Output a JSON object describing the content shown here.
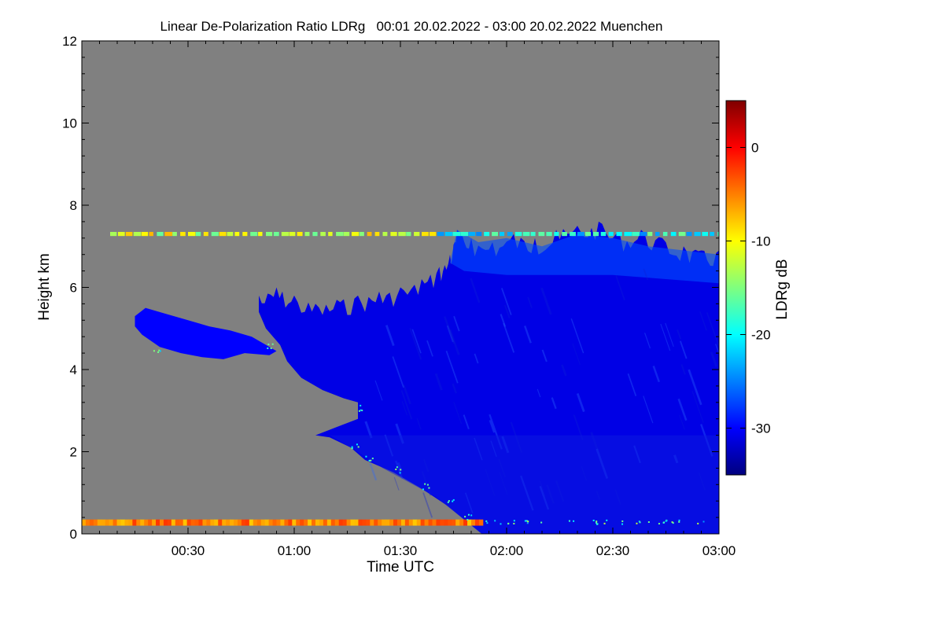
{
  "chart_data": {
    "type": "heatmap",
    "title": "Linear De-Polarization Ratio LDRg   00:01 20.02.2022 - 03:00 20.02.2022 Muenchen",
    "xlabel": "Time UTC",
    "ylabel": "Height km",
    "colorbar_label": "LDRg dB",
    "xlim": [
      "00:01",
      "03:00"
    ],
    "ylim": [
      0,
      12
    ],
    "x_ticks": [
      "00:30",
      "01:00",
      "01:30",
      "02:00",
      "02:30",
      "03:00"
    ],
    "y_ticks": [
      0,
      2,
      4,
      6,
      8,
      10,
      12
    ],
    "colorbar_range": [
      -35,
      5
    ],
    "colorbar_ticks": [
      0,
      -10,
      -20,
      -30
    ],
    "colormap": [
      "#00007f",
      "#0000ff",
      "#007fff",
      "#00ffff",
      "#7fff7f",
      "#ffff00",
      "#ff7f00",
      "#ff0000",
      "#7f0000"
    ],
    "no_signal_color": "#808080",
    "features": [
      {
        "name": "isolated cloud layer",
        "time_start": "00:15",
        "time_end": "00:55",
        "height_bottom_km": 4.3,
        "height_top_km": 5.5,
        "ldr_db": -30
      },
      {
        "name": "main precipitating cloud",
        "time_start": "00:50",
        "time_end": "03:00",
        "height_bottom_km": 0.0,
        "height_top_km": 7.6,
        "ldr_db": -31
      },
      {
        "name": "near-surface layer",
        "time_start": "00:01",
        "time_end": "01:53",
        "height_bottom_km": 0.2,
        "height_top_km": 0.35,
        "ldr_db": -5
      },
      {
        "name": "thin layer near 7.3 km",
        "time_start": "00:10",
        "time_end": "03:00",
        "height_bottom_km": 7.25,
        "height_top_km": 7.35,
        "ldr_db": -12
      }
    ]
  }
}
